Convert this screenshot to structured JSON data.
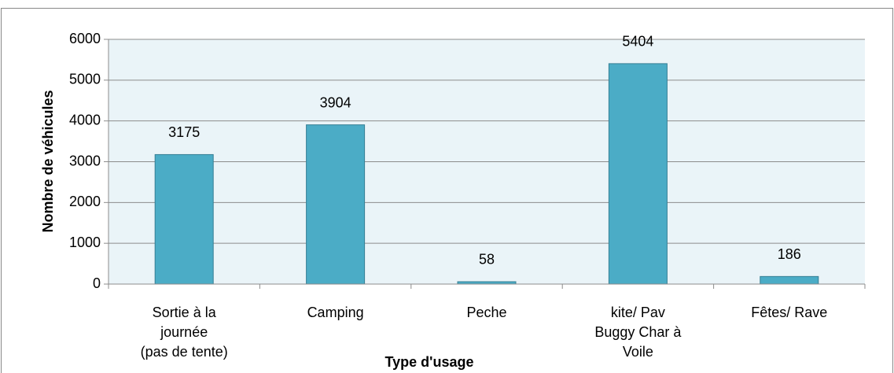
{
  "chart_data": {
    "type": "bar",
    "categories": [
      "Sortie à la\njournée\n(pas de tente)",
      "Camping",
      "Peche",
      "kite/ Pav\nBuggy Char à\nVoile",
      "Fêtes/ Rave"
    ],
    "values": [
      3175,
      3904,
      58,
      5404,
      186
    ],
    "color": "#4bacc6",
    "ylim": [
      0,
      6000
    ],
    "yticks": [
      0,
      1000,
      2000,
      3000,
      4000,
      5000,
      6000
    ],
    "grid": true,
    "xlabel": "Type d'usage",
    "ylabel": "Nombre de véhicules"
  }
}
